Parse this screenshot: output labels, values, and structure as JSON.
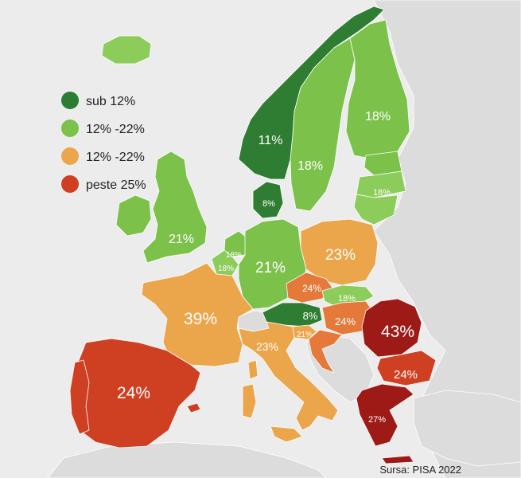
{
  "legend": {
    "items": [
      {
        "label": "sub 12%",
        "color": "#2a7d32"
      },
      {
        "label": "12% -22%",
        "color": "#7cc14a"
      },
      {
        "label": "12% -22%",
        "color": "#eba64c"
      },
      {
        "label": "peste 25%",
        "color": "#cf3f22"
      }
    ]
  },
  "source": "Sursa: PISA 2022",
  "colors": {
    "dark_green": "#2e7d32",
    "green": "#7cc14a",
    "light_green": "#8ccc5a",
    "orange": "#eba64c",
    "dark_orange": "#e4793a",
    "red": "#cf3f22",
    "dark_red": "#9e1a16",
    "background": "#ececec",
    "other_land": "#dcdcdc"
  },
  "labels": {
    "norway": "11%",
    "sweden": "18%",
    "finland": "18%",
    "baltics": "18%",
    "denmark": "8%",
    "uk": "21%",
    "netherlands": "18%",
    "belgium": "18%",
    "germany": "21%",
    "poland": "23%",
    "czechia": "24%",
    "slovakia": "18%",
    "austria": "8%",
    "hungary": "24%",
    "slovenia": "21%",
    "france": "39%",
    "italy": "23%",
    "romania": "43%",
    "bulgaria": "24%",
    "greece": "27%",
    "spain": "24%"
  }
}
